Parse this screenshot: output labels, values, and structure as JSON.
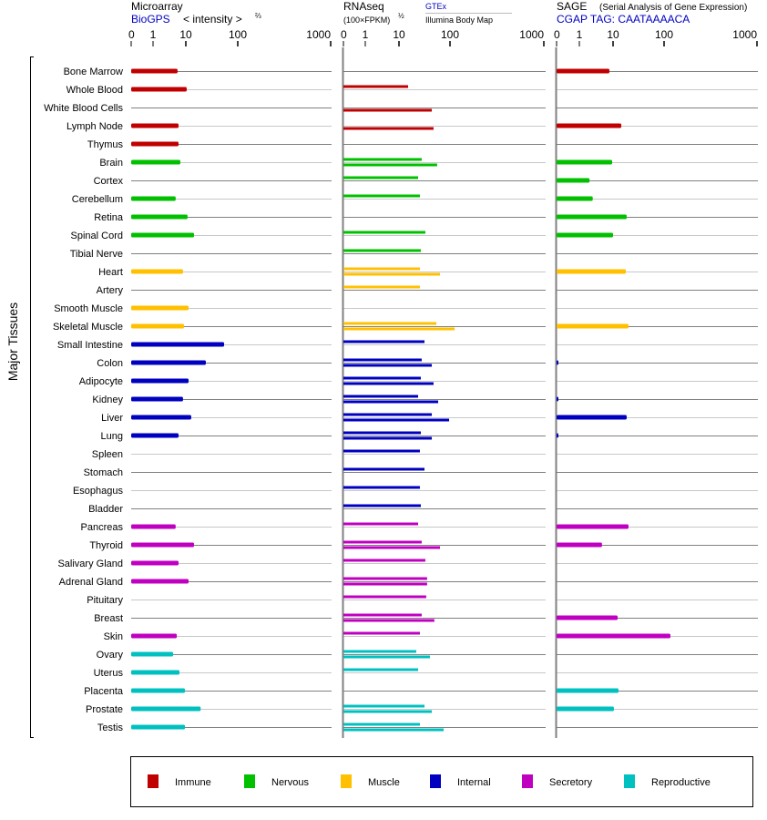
{
  "chart_data": {
    "type": "bar",
    "ylabel": "Major Tissues",
    "categories": [
      "Bone Marrow",
      "Whole Blood",
      "White Blood Cells",
      "Lymph Node",
      "Thymus",
      "Brain",
      "Cortex",
      "Cerebellum",
      "Retina",
      "Spinal Cord",
      "Tibial Nerve",
      "Heart",
      "Artery",
      "Smooth Muscle",
      "Skeletal Muscle",
      "Small Intestine",
      "Colon",
      "Adipocyte",
      "Kidney",
      "Liver",
      "Lung",
      "Spleen",
      "Stomach",
      "Esophagus",
      "Bladder",
      "Pancreas",
      "Thyroid",
      "Salivary Gland",
      "Adrenal Gland",
      "Pituitary",
      "Breast",
      "Skin",
      "Ovary",
      "Uterus",
      "Placenta",
      "Prostate",
      "Testis"
    ],
    "groups": [
      0,
      0,
      0,
      0,
      0,
      1,
      1,
      1,
      1,
      1,
      1,
      2,
      2,
      2,
      2,
      3,
      3,
      3,
      3,
      3,
      3,
      3,
      3,
      3,
      3,
      4,
      4,
      4,
      4,
      4,
      4,
      4,
      5,
      5,
      5,
      5,
      5
    ],
    "legend": [
      {
        "label": "Immune",
        "color": "#c00000"
      },
      {
        "label": "Nervous",
        "color": "#00c000"
      },
      {
        "label": "Muscle",
        "color": "#ffc000"
      },
      {
        "label": "Internal",
        "color": "#0000c0"
      },
      {
        "label": "Secretory",
        "color": "#c000c0"
      },
      {
        "label": "Reproductive",
        "color": "#00c0c0"
      }
    ],
    "legend_position": "bottom",
    "panels": [
      {
        "title": "Microarray",
        "source": "BioGPS",
        "unit": "< intensity >",
        "unit_exp": "⅔",
        "ticks": [
          "0",
          "1",
          "10",
          "100",
          "1000"
        ],
        "series": [
          {
            "name": "BioGPS",
            "values": [
              5.6,
              10.4,
              null,
              6.0,
              6.0,
              6.8,
              null,
              4.9,
              10.8,
              14.4,
              null,
              8.2,
              null,
              11.3,
              8.8,
              54.6,
              24.3,
              11.3,
              8.2,
              12.7,
              6.0,
              null,
              null,
              null,
              null,
              4.9,
              14.4,
              6.0,
              11.3,
              null,
              null,
              5.3,
              4.1,
              6.4,
              9.4,
              19.3,
              9.4
            ]
          }
        ]
      },
      {
        "title": "RNAseq",
        "unit": "(100×FPKM)",
        "unit_exp": "½",
        "ticks": [
          "0",
          "1",
          "10",
          "100",
          "1000"
        ],
        "series": [
          {
            "name": "GTEx",
            "values": [
              null,
              15.1,
              null,
              null,
              null,
              27.9,
              23.7,
              25.7,
              null,
              32.9,
              26.8,
              25.7,
              25.7,
              null,
              54,
              31.6,
              27.9,
              26.8,
              23.7,
              44,
              26.8,
              25.7,
              31.6,
              25.7,
              26.8,
              23.7,
              27.9,
              32.9,
              35.6,
              34.2,
              27.9,
              25.7,
              21.8,
              23.7,
              null,
              31.6,
              25.7
            ]
          },
          {
            "name": "Illumina Body Map",
            "values": [
              null,
              null,
              44,
              47.6,
              null,
              56,
              null,
              null,
              null,
              null,
              null,
              63.6,
              null,
              null,
              112,
              null,
              44,
              47.6,
              58.6,
              96,
              44,
              null,
              null,
              null,
              null,
              null,
              63.6,
              null,
              35.6,
              null,
              49.4,
              null,
              40.4,
              null,
              null,
              44,
              75
            ]
          }
        ]
      },
      {
        "title": "SAGE",
        "subtitle": "(Serial Analysis of Gene Expression)",
        "source": "CGAP TAG: CAATAAAACA",
        "ticks": [
          "0",
          "1",
          "10",
          "100",
          "1000"
        ],
        "series": [
          {
            "name": "SAGE",
            "values": [
              7.8,
              null,
              null,
              14.5,
              null,
              9.4,
              2.0,
              2.5,
              18.5,
              10,
              null,
              17.8,
              null,
              null,
              20.1,
              null,
              0.04,
              null,
              0.04,
              18.5,
              0.04,
              null,
              null,
              null,
              null,
              20.1,
              4.7,
              null,
              null,
              null,
              12.3,
              117,
              null,
              null,
              12.8,
              10.4,
              null
            ]
          }
        ]
      }
    ]
  }
}
